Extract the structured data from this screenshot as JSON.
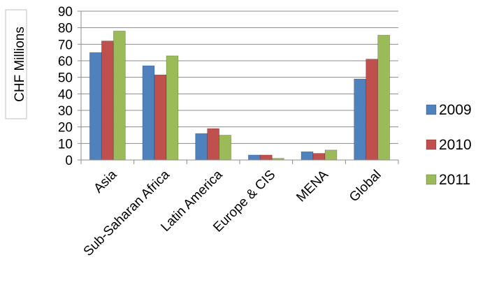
{
  "chart_data": {
    "type": "bar",
    "categories": [
      "Asia",
      "Sub-Saharan Africa",
      "Latin America",
      "Europe & CIS",
      "MENA",
      "Global"
    ],
    "series": [
      {
        "name": "2009",
        "color": "#4F81BD",
        "values": [
          65,
          57,
          16,
          3,
          5,
          49
        ]
      },
      {
        "name": "2010",
        "color": "#C0504D",
        "values": [
          72,
          51.5,
          19,
          3,
          4,
          61
        ]
      },
      {
        "name": "2011",
        "color": "#9BBB59",
        "values": [
          78,
          63,
          15,
          1,
          6,
          75.5
        ]
      }
    ],
    "ylabel": "CHF Millions",
    "ylim": [
      0,
      90
    ],
    "yticks": [
      0,
      10,
      20,
      30,
      40,
      50,
      60,
      70,
      80,
      90
    ],
    "grid": true,
    "legend_position": "right"
  }
}
